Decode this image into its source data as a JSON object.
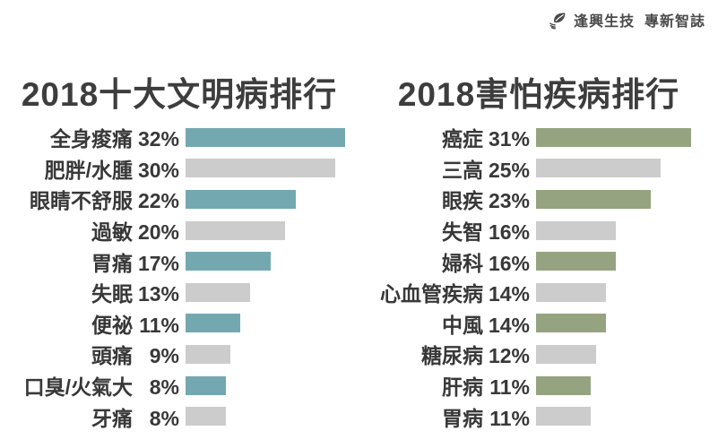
{
  "logo": {
    "icon": "hand-leaf-icon",
    "text": "逢興生技  專新智誌"
  },
  "colors": {
    "left_accent": "#74a8b1",
    "right_accent": "#95a381",
    "muted_bar": "#cccccc",
    "title_text": "#3d3d3d",
    "label_text": "#383838",
    "logo_text": "#4a4a4a",
    "background": "#ffffff"
  },
  "chart_data": [
    {
      "type": "bar",
      "orientation": "horizontal",
      "title": "2018十大文明病排行",
      "categories": [
        "全身痠痛",
        "肥胖/水腫",
        "眼睛不舒服",
        "過敏",
        "胃痛",
        "失眠",
        "便祕",
        "頭痛",
        "口臭/火氣大",
        "牙痛"
      ],
      "values": [
        32,
        30,
        22,
        20,
        17,
        13,
        11,
        9,
        8,
        8
      ],
      "value_labels": [
        "32%",
        "30%",
        "22%",
        "20%",
        "17%",
        "13%",
        "11%",
        "9%",
        "8%",
        "8%"
      ],
      "unit": "%",
      "xlim": [
        0,
        35
      ],
      "grid": false,
      "legend": "none",
      "bar_color_pattern": "alternating",
      "accent_color": "#74a8b1",
      "alt_color": "#cccccc"
    },
    {
      "type": "bar",
      "orientation": "horizontal",
      "title": "2018害怕疾病排行",
      "categories": [
        "癌症",
        "三高",
        "眼疾",
        "失智",
        "婦科",
        "心血管疾病",
        "中風",
        "糖尿病",
        "肝病",
        "胃病"
      ],
      "values": [
        31,
        25,
        23,
        16,
        16,
        14,
        14,
        12,
        11,
        11
      ],
      "value_labels": [
        "31%",
        "25%",
        "23%",
        "16%",
        "16%",
        "14%",
        "14%",
        "12%",
        "11%",
        "11%"
      ],
      "unit": "%",
      "xlim": [
        0,
        35
      ],
      "grid": false,
      "legend": "none",
      "bar_color_pattern": "alternating",
      "accent_color": "#95a381",
      "alt_color": "#cccccc"
    }
  ]
}
